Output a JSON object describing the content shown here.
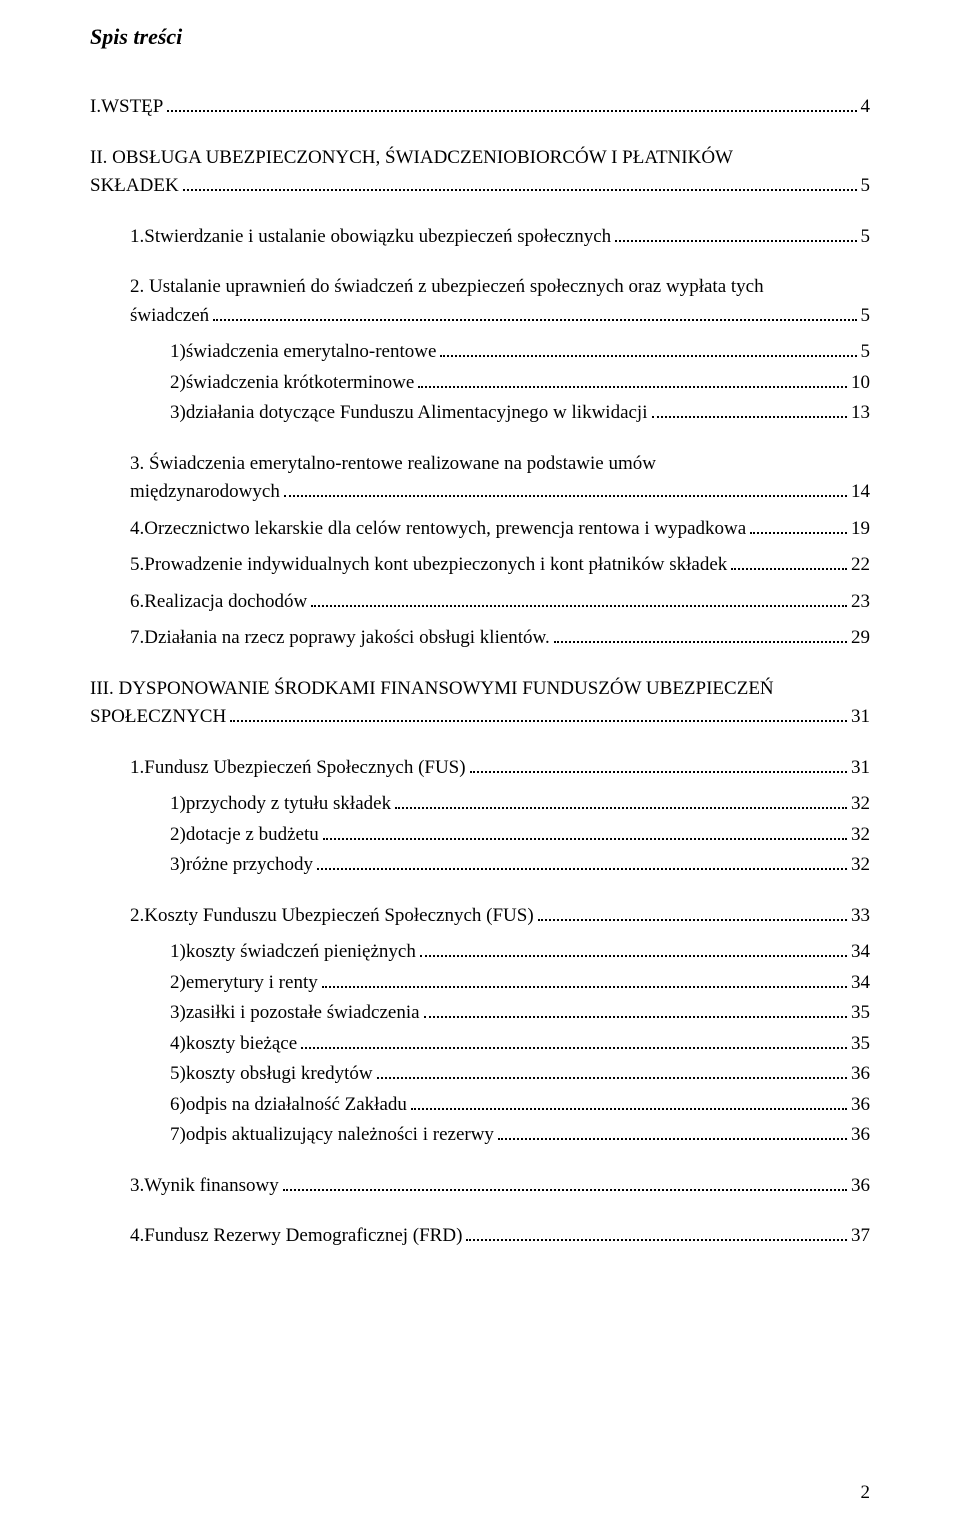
{
  "title": "Spis treści",
  "page_number": "2",
  "font_family": "Times New Roman",
  "text_color": "#000000",
  "bg_color": "#ffffff",
  "entries": [
    {
      "id": "e1",
      "indent": 0,
      "gap": "lg",
      "label": "I.",
      "text": "WSTĘP",
      "page": "4"
    },
    {
      "id": "e2",
      "indent": 0,
      "gap": "md",
      "wrap2": true,
      "line1_label": "II.",
      "line1_text": "OBSŁUGA UBEZPIECZONYCH, ŚWIADCZENIOBIORCÓW I PŁATNIKÓW",
      "line2_text": "SKŁADEK",
      "page": "5"
    },
    {
      "id": "e3",
      "indent": 1,
      "gap": "md",
      "label": "1.",
      "text": "Stwierdzanie i ustalanie obowiązku ubezpieczeń społecznych",
      "page": "5"
    },
    {
      "id": "e4",
      "indent": 1,
      "gap": "md",
      "wrap2": true,
      "line1_label": "2.",
      "line1_text": "Ustalanie uprawnień do świadczeń z ubezpieczeń społecznych oraz wypłata tych",
      "line2_text": "świadczeń",
      "page": "5"
    },
    {
      "id": "e5",
      "indent": 2,
      "gap": "sm",
      "label": "1)",
      "text": "świadczenia emerytalno-rentowe",
      "page": "5"
    },
    {
      "id": "e6",
      "indent": 2,
      "gap": "xs",
      "label": "2)",
      "text": "świadczenia krótkoterminowe",
      "page": "10"
    },
    {
      "id": "e7",
      "indent": 2,
      "gap": "xs",
      "label": "3)",
      "text": "działania dotyczące Funduszu Alimentacyjnego w likwidacji",
      "page": "13"
    },
    {
      "id": "e8",
      "indent": 1,
      "gap": "md",
      "wrap2": true,
      "line1_label": "3.",
      "line1_text": "Świadczenia    emerytalno-rentowe    realizowane    na    podstawie    umów",
      "line2_text": "międzynarodowych",
      "page": "14"
    },
    {
      "id": "e9",
      "indent": 1,
      "gap": "sm",
      "label": "4.",
      "text": "Orzecznictwo lekarskie dla celów rentowych, prewencja rentowa i wypadkowa",
      "page": "19"
    },
    {
      "id": "e10",
      "indent": 1,
      "gap": "sm",
      "label": "5.",
      "text": "Prowadzenie indywidualnych kont ubezpieczonych i kont płatników składek",
      "page": "22"
    },
    {
      "id": "e11",
      "indent": 1,
      "gap": "sm",
      "label": "6.",
      "text": "Realizacja dochodów",
      "page": "23"
    },
    {
      "id": "e12",
      "indent": 1,
      "gap": "sm",
      "label": "7.",
      "text": "Działania na rzecz poprawy jakości obsługi klientów.",
      "page": "29"
    },
    {
      "id": "e13",
      "indent": 0,
      "gap": "md",
      "wrap2": true,
      "line1_label": "III.",
      "line1_text": "DYSPONOWANIE ŚRODKAMI FINANSOWYMI FUNDUSZÓW UBEZPIECZEŃ",
      "line2_text": "SPOŁECZNYCH",
      "page": "31"
    },
    {
      "id": "e14",
      "indent": 1,
      "gap": "md",
      "label": "1.",
      "text": "Fundusz Ubezpieczeń Społecznych (FUS)",
      "page": "31"
    },
    {
      "id": "e15",
      "indent": 2,
      "gap": "sm",
      "label": "1)",
      "text": "przychody z tytułu składek",
      "page": "32"
    },
    {
      "id": "e16",
      "indent": 2,
      "gap": "xs",
      "label": "2)",
      "text": "dotacje z budżetu",
      "page": "32"
    },
    {
      "id": "e17",
      "indent": 2,
      "gap": "xs",
      "label": "3)",
      "text": "różne przychody",
      "page": "32"
    },
    {
      "id": "e18",
      "indent": 1,
      "gap": "md",
      "label": "2.",
      "text": "Koszty Funduszu Ubezpieczeń Społecznych (FUS)",
      "page": "33"
    },
    {
      "id": "e19",
      "indent": 2,
      "gap": "sm",
      "label": "1)",
      "text": "koszty świadczeń pieniężnych",
      "page": "34"
    },
    {
      "id": "e20",
      "indent": 2,
      "gap": "xs",
      "label": "2)",
      "text": "emerytury i renty",
      "page": "34"
    },
    {
      "id": "e21",
      "indent": 2,
      "gap": "xs",
      "label": "3)",
      "text": "zasiłki i pozostałe świadczenia",
      "page": "35"
    },
    {
      "id": "e22",
      "indent": 2,
      "gap": "xs",
      "label": "4)",
      "text": "koszty bieżące",
      "page": "35"
    },
    {
      "id": "e23",
      "indent": 2,
      "gap": "xs",
      "label": "5)",
      "text": "koszty obsługi kredytów",
      "page": "36"
    },
    {
      "id": "e24",
      "indent": 2,
      "gap": "xs",
      "label": "6)",
      "text": "odpis na działalność Zakładu",
      "page": "36"
    },
    {
      "id": "e25",
      "indent": 2,
      "gap": "xs",
      "label": "7)",
      "text": "odpis aktualizujący należności i rezerwy",
      "page": "36"
    },
    {
      "id": "e26",
      "indent": 1,
      "gap": "md",
      "label": "3.",
      "text": "Wynik finansowy",
      "page": "36"
    },
    {
      "id": "e27",
      "indent": 1,
      "gap": "md",
      "label": "4.",
      "text": "Fundusz Rezerwy Demograficznej (FRD)",
      "page": "37"
    }
  ]
}
